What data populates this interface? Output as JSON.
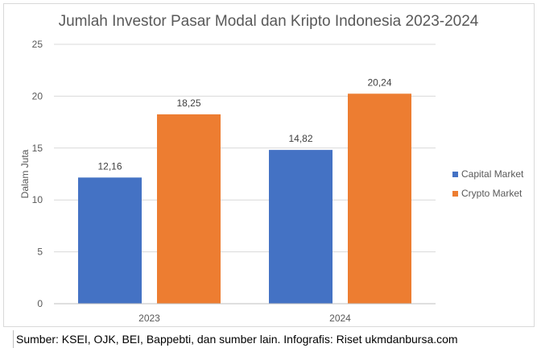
{
  "chart_data": {
    "type": "bar",
    "title": "Jumlah Investor Pasar Modal dan Kripto Indonesia 2023-2024",
    "xlabel": "",
    "ylabel": "Dalam Juta",
    "categories": [
      "2023",
      "2024"
    ],
    "series": [
      {
        "name": "Capital Market",
        "values": [
          12.16,
          14.82
        ],
        "labels": [
          "12,16",
          "14,82"
        ],
        "color": "#4472C4"
      },
      {
        "name": "Crypto Market",
        "values": [
          18.25,
          20.24
        ],
        "labels": [
          "18,25",
          "20,24"
        ],
        "color": "#ED7D31"
      }
    ],
    "ylim": [
      0,
      25
    ],
    "yticks": [
      0,
      5,
      10,
      15,
      20,
      25
    ],
    "grid": true,
    "legend": "right"
  },
  "footer": {
    "source": "Sumber: KSEI, OJK, BEI, Bappebti, dan sumber lain. Infografis: Riset ukmdanbursa.com"
  }
}
